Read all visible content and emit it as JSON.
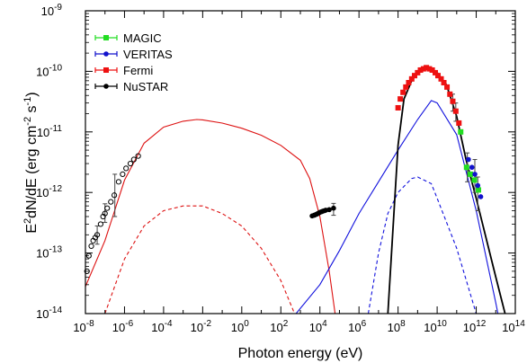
{
  "chart_data": {
    "type": "scatter",
    "title": "",
    "xlabel": "Photon energy (eV)",
    "ylabel_parts": [
      "E",
      "2",
      "dN/dE (erg cm",
      "-2",
      " s",
      "-1",
      ")"
    ],
    "x_scale": "log",
    "y_scale": "log",
    "xlim": [
      1e-08,
      100000000000000.0
    ],
    "ylim": [
      1e-14,
      1e-09
    ],
    "x_ticks": [
      {
        "base": "10",
        "exp": "-8"
      },
      {
        "base": "10",
        "exp": "-6"
      },
      {
        "base": "10",
        "exp": "-4"
      },
      {
        "base": "10",
        "exp": "-2"
      },
      {
        "base": "10",
        "exp": "0"
      },
      {
        "base": "10",
        "exp": "2"
      },
      {
        "base": "10",
        "exp": "4"
      },
      {
        "base": "10",
        "exp": "6"
      },
      {
        "base": "10",
        "exp": "8"
      },
      {
        "base": "10",
        "exp": "10"
      },
      {
        "base": "10",
        "exp": "12"
      },
      {
        "base": "10",
        "exp": "14"
      }
    ],
    "y_ticks": [
      {
        "base": "10",
        "exp": "-14"
      },
      {
        "base": "10",
        "exp": "-13"
      },
      {
        "base": "10",
        "exp": "-12"
      },
      {
        "base": "10",
        "exp": "-11"
      },
      {
        "base": "10",
        "exp": "-10"
      },
      {
        "base": "10",
        "exp": "-9"
      }
    ],
    "legend_position": "top-left",
    "series": [
      {
        "name": "MAGIC",
        "color": "#22dd22",
        "marker": "square",
        "points": [
          [
            160000000000.0,
            1e-11
          ],
          [
            320000000000.0,
            2.6e-12
          ],
          [
            500000000000.0,
            2e-12
          ],
          [
            800000000000.0,
            1.6e-12
          ],
          [
            1300000000000.0,
            1.1e-12
          ]
        ]
      },
      {
        "name": "VERITAS",
        "color": "#1111cc",
        "marker": "circle",
        "points": [
          [
            400000000000.0,
            3.5e-12
          ],
          [
            600000000000.0,
            2.6e-12
          ],
          [
            850000000000.0,
            2e-12
          ],
          [
            1200000000000.0,
            1.3e-12
          ],
          [
            1700000000000.0,
            8.5e-13
          ]
        ]
      },
      {
        "name": "Fermi",
        "color": "#ee1111",
        "marker": "square",
        "points": [
          [
            100000000.0,
            2.5e-11
          ],
          [
            130000000.0,
            3.5e-11
          ],
          [
            180000000.0,
            4.5e-11
          ],
          [
            250000000.0,
            5.5e-11
          ],
          [
            350000000.0,
            6.5e-11
          ],
          [
            500000000.0,
            7.5e-11
          ],
          [
            700000000.0,
            8.5e-11
          ],
          [
            1000000000.0,
            9.5e-11
          ],
          [
            1400000000.0,
            1.05e-10
          ],
          [
            2000000000.0,
            1.1e-10
          ],
          [
            2800000000.0,
            1.15e-10
          ],
          [
            4000000000.0,
            1.1e-10
          ],
          [
            5600000000.0,
            1.05e-10
          ],
          [
            8000000000.0,
            9.5e-11
          ],
          [
            11000000000.0,
            8.5e-11
          ],
          [
            16000000000.0,
            7.5e-11
          ],
          [
            22000000000.0,
            6.5e-11
          ],
          [
            32000000000.0,
            5.5e-11
          ],
          [
            45000000000.0,
            4.2e-11
          ],
          [
            63000000000.0,
            3.2e-11
          ],
          [
            90000000000.0,
            2.2e-11
          ],
          [
            130000000000.0,
            1.4e-11
          ]
        ]
      },
      {
        "name": "NuSTAR",
        "color": "#000000",
        "marker": "circle",
        "points": [
          [
            4000.0,
            4.1e-13
          ],
          [
            5000.0,
            4.2e-13
          ],
          [
            6000.0,
            4.3e-13
          ],
          [
            7000.0,
            4.4e-13
          ],
          [
            8000.0,
            4.5e-13
          ],
          [
            9000.0,
            4.6e-13
          ],
          [
            10000.0,
            4.7e-13
          ],
          [
            12000.0,
            4.8e-13
          ],
          [
            14000.0,
            4.9e-13
          ],
          [
            17000.0,
            5e-13
          ],
          [
            20000.0,
            5.1e-13
          ],
          [
            30000.0,
            5.2e-13
          ],
          [
            50000.0,
            5.5e-13
          ]
        ]
      },
      {
        "name": "",
        "color": "#000000",
        "marker": "open-circle",
        "points": [
          [
            1.2e-08,
            5e-14
          ],
          [
            1.5e-08,
            9e-14
          ],
          [
            2e-08,
            1.3e-13
          ],
          [
            2.5e-08,
            1.6e-13
          ],
          [
            3.2e-08,
            1.8e-13
          ],
          [
            4e-08,
            2e-13
          ],
          [
            6e-08,
            3e-13
          ],
          [
            8e-08,
            4e-13
          ],
          [
            1e-07,
            4.5e-13
          ],
          [
            1.3e-07,
            5.5e-13
          ],
          [
            2e-07,
            7e-13
          ],
          [
            3e-07,
            9e-13
          ],
          [
            5e-07,
            1.5e-12
          ],
          [
            8e-07,
            2e-12
          ],
          [
            1.2e-06,
            2.5e-12
          ],
          [
            2e-06,
            3e-12
          ],
          [
            3e-06,
            3.5e-12
          ],
          [
            5e-06,
            4e-12
          ]
        ]
      }
    ],
    "curves": [
      {
        "name": "",
        "color": "#dd1111",
        "style": "solid",
        "points": [
          [
            1e-08,
            2.8e-14
          ],
          [
            1e-07,
            1.6e-13
          ],
          [
            1e-06,
            1.6e-12
          ],
          [
            1e-05,
            6.5e-12
          ],
          [
            0.0001,
            1.2e-11
          ],
          [
            0.001,
            1.5e-11
          ],
          [
            0.005,
            1.6e-11
          ],
          [
            0.01,
            1.58e-11
          ],
          [
            0.1,
            1.4e-11
          ],
          [
            1.0,
            1.15e-11
          ],
          [
            10.0,
            8.8e-12
          ],
          [
            100.0,
            6e-12
          ],
          [
            1000.0,
            3.4e-12
          ],
          [
            3000.0,
            1.7e-12
          ],
          [
            10000.0,
            4e-13
          ],
          [
            30000.0,
            5e-14
          ],
          [
            60000.0,
            1e-14
          ]
        ]
      },
      {
        "name": "",
        "color": "#dd1111",
        "style": "dashed",
        "points": [
          [
            1e-07,
            1e-14
          ],
          [
            1e-06,
            8e-14
          ],
          [
            1e-05,
            2.8e-13
          ],
          [
            0.0001,
            5e-13
          ],
          [
            0.001,
            6e-13
          ],
          [
            0.01,
            6e-13
          ],
          [
            0.1,
            4.5e-13
          ],
          [
            1.0,
            2.8e-13
          ],
          [
            10.0,
            1.2e-13
          ],
          [
            100.0,
            3.5e-14
          ],
          [
            300.0,
            1.5e-14
          ],
          [
            500.0,
            1e-14
          ]
        ]
      },
      {
        "name": "",
        "color": "#1111dd",
        "style": "solid",
        "points": [
          [
            600.0,
            1e-14
          ],
          [
            10000.0,
            3e-14
          ],
          [
            100000.0,
            1.1e-13
          ],
          [
            1000000.0,
            4.5e-13
          ],
          [
            10000000.0,
            1.5e-12
          ],
          [
            100000000.0,
            5e-12
          ],
          [
            1000000000.0,
            1.6e-11
          ],
          [
            5000000000.0,
            3.3e-11
          ],
          [
            10000000000.0,
            3e-11
          ],
          [
            100000000000.0,
            9e-12
          ],
          [
            1000000000000.0,
            5e-13
          ],
          [
            10000000000000.0,
            1.5e-14
          ],
          [
            13000000000000.0,
            1e-14
          ]
        ]
      },
      {
        "name": "",
        "color": "#1111dd",
        "style": "dashed",
        "points": [
          [
            3000000.0,
            1e-14
          ],
          [
            10000000.0,
            1e-13
          ],
          [
            30000000.0,
            4.5e-13
          ],
          [
            100000000.0,
            1e-12
          ],
          [
            500000000.0,
            1.7e-12
          ],
          [
            1000000000.0,
            1.8e-12
          ],
          [
            5000000000.0,
            1.4e-12
          ],
          [
            10000000000.0,
            8e-13
          ],
          [
            100000000000.0,
            1.2e-13
          ],
          [
            1000000000000.0,
            1e-14
          ]
        ]
      },
      {
        "name": "",
        "color": "#000000",
        "style": "solid",
        "points": [
          [
            30000000.0,
            1e-14
          ],
          [
            60000000.0,
            4e-13
          ],
          [
            100000000.0,
            6e-12
          ],
          [
            200000000.0,
            3.5e-11
          ],
          [
            500000000.0,
            7e-11
          ],
          [
            1000000000.0,
            9.5e-11
          ],
          [
            3000000000.0,
            1.15e-10
          ],
          [
            10000000000.0,
            9.5e-11
          ],
          [
            30000000000.0,
            6e-11
          ],
          [
            100000000000.0,
            1.8e-11
          ],
          [
            300000000000.0,
            3.5e-12
          ],
          [
            1000000000000.0,
            8e-13
          ],
          [
            10000000000000.0,
            4e-14
          ],
          [
            30000000000000.0,
            1e-14
          ]
        ]
      }
    ],
    "error_bars": [
      {
        "x": 4e-08,
        "low": 1.4e-13,
        "high": 2.8e-13
      },
      {
        "x": 3.2e-07,
        "low": 4e-13,
        "high": 2e-12
      },
      {
        "x": 1e-07,
        "low": 3.2e-13,
        "high": 6.5e-13
      },
      {
        "x": 50000.0,
        "low": 4.2e-13,
        "high": 6.6e-13
      },
      {
        "x": 350000000000.0,
        "low": 1.5e-12,
        "high": 4.5e-12
      },
      {
        "x": 850000000000.0,
        "low": 1e-12,
        "high": 3.5e-12
      },
      {
        "x": 1200000000000.0,
        "low": 5e-13,
        "high": 1.8e-12
      },
      {
        "x": 63000000000.0,
        "low": 2.2e-11,
        "high": 4.2e-11
      },
      {
        "x": 90000000000.0,
        "low": 1.5e-11,
        "high": 3e-11
      }
    ]
  }
}
